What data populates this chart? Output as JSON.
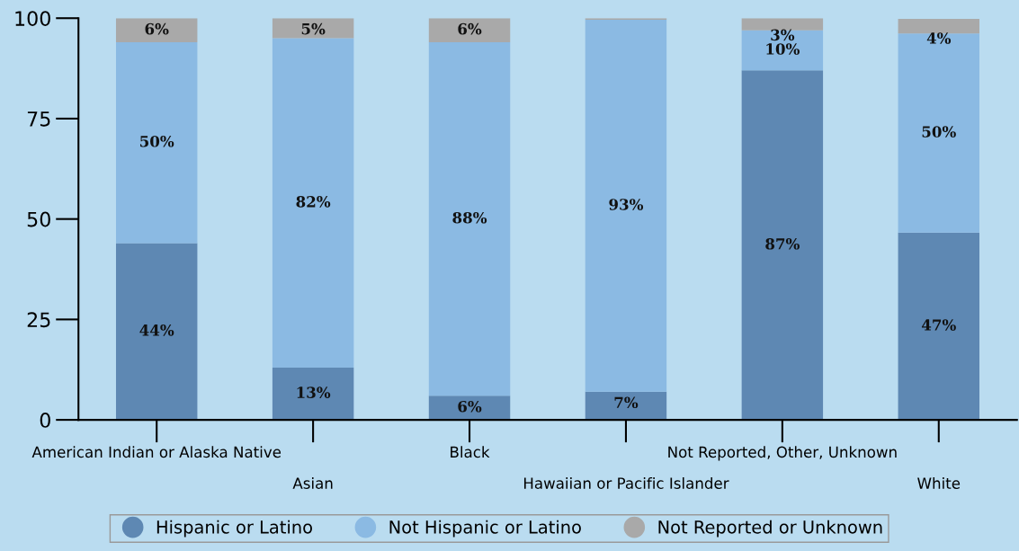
{
  "chart_data": {
    "type": "bar",
    "stacked": true,
    "categories": [
      "American Indian or Alaska Native",
      "Asian",
      "Black",
      "Hawaiian or Pacific Islander",
      "Not Reported, Other, Unknown",
      "White"
    ],
    "series": [
      {
        "name": "Hispanic or Latino",
        "color": "#5e88b3",
        "values": [
          44,
          13,
          6,
          7,
          87,
          46.6
        ],
        "value_labels": [
          "44%",
          "13%",
          "6%",
          "7%",
          "87%",
          "47%"
        ]
      },
      {
        "name": "Not Hispanic or Latino",
        "color": "#8bbae3",
        "values": [
          50,
          82,
          88,
          92.6,
          10,
          49.6
        ],
        "value_labels": [
          "50%",
          "82%",
          "88%",
          "93%",
          "10%",
          "50%"
        ]
      },
      {
        "name": "Not Reported or Unknown",
        "color": "#a9a9a9",
        "values": [
          6,
          5,
          6,
          0.4,
          3,
          3.6
        ],
        "value_labels": [
          "6%",
          "5%",
          "6%",
          null,
          "3%",
          "4%"
        ]
      }
    ],
    "ylim": [
      0,
      100
    ],
    "yticks": [
      0,
      25,
      50,
      75,
      100
    ],
    "grid": false,
    "legend": "bottom"
  }
}
